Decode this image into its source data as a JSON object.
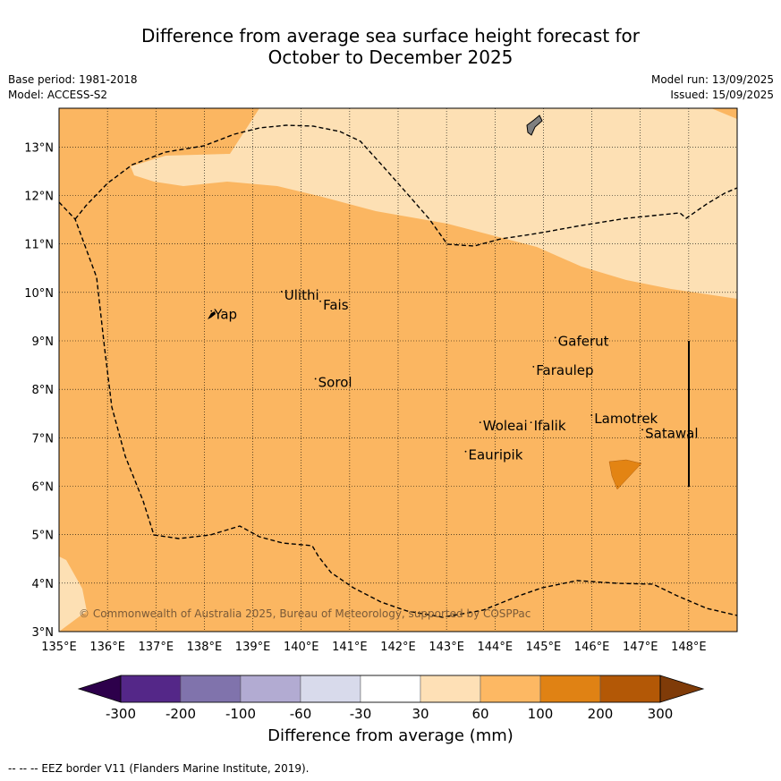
{
  "title_line1": "Difference from average sea surface height forecast for",
  "title_line2": "October to December 2025",
  "meta_left": [
    "Base period: 1981-2018",
    "Model: ACCESS-S2"
  ],
  "meta_right": [
    "Model run: 13/09/2025",
    "Issued: 15/09/2025"
  ],
  "map": {
    "lon_range": [
      135,
      149
    ],
    "lat_range": [
      3,
      13.8
    ],
    "lon_ticks": [
      "135°E",
      "136°E",
      "137°E",
      "138°E",
      "139°E",
      "140°E",
      "141°E",
      "142°E",
      "143°E",
      "144°E",
      "145°E",
      "146°E",
      "147°E",
      "148°E"
    ],
    "lat_ticks": [
      "3°N",
      "4°N",
      "5°N",
      "6°N",
      "7°N",
      "8°N",
      "9°N",
      "10°N",
      "11°N",
      "12°N",
      "13°N"
    ],
    "base_color": "#fbb661",
    "light_color": "#fde0b4",
    "dark_color": "#e38413",
    "places": [
      {
        "name": "Yap",
        "lon": 138.2,
        "lat": 9.45
      },
      {
        "name": "Ulithi",
        "lon": 139.65,
        "lat": 9.85
      },
      {
        "name": "Fais",
        "lon": 140.45,
        "lat": 9.65
      },
      {
        "name": "Gaferut",
        "lon": 145.3,
        "lat": 8.9
      },
      {
        "name": "Faraulep",
        "lon": 144.85,
        "lat": 8.3
      },
      {
        "name": "Sorol",
        "lon": 140.35,
        "lat": 8.05
      },
      {
        "name": "Woleai",
        "lon": 143.75,
        "lat": 7.15
      },
      {
        "name": "Ifalik",
        "lon": 144.8,
        "lat": 7.15
      },
      {
        "name": "Lamotrek",
        "lon": 146.05,
        "lat": 7.3
      },
      {
        "name": "Satawal",
        "lon": 147.1,
        "lat": 7.0
      },
      {
        "name": "Eauripik",
        "lon": 143.45,
        "lat": 6.55
      }
    ],
    "copyright": "© Commonwealth of Australia 2025, Bureau of Meteorology, supported by COSPPac"
  },
  "colorbar": {
    "colors": [
      "#2d004b",
      "#542788",
      "#8073ac",
      "#b2abd2",
      "#d8daeb",
      "#ffffff",
      "#fee0b6",
      "#fdb863",
      "#e08214",
      "#b35806",
      "#7f3b08"
    ],
    "ticks": [
      "-300",
      "-200",
      "-100",
      "-60",
      "-30",
      "30",
      "60",
      "100",
      "200",
      "300"
    ],
    "label": "Difference from average (mm)"
  },
  "footer": "--  --  -- EEZ border V11 (Flanders Marine Institute, 2019)."
}
